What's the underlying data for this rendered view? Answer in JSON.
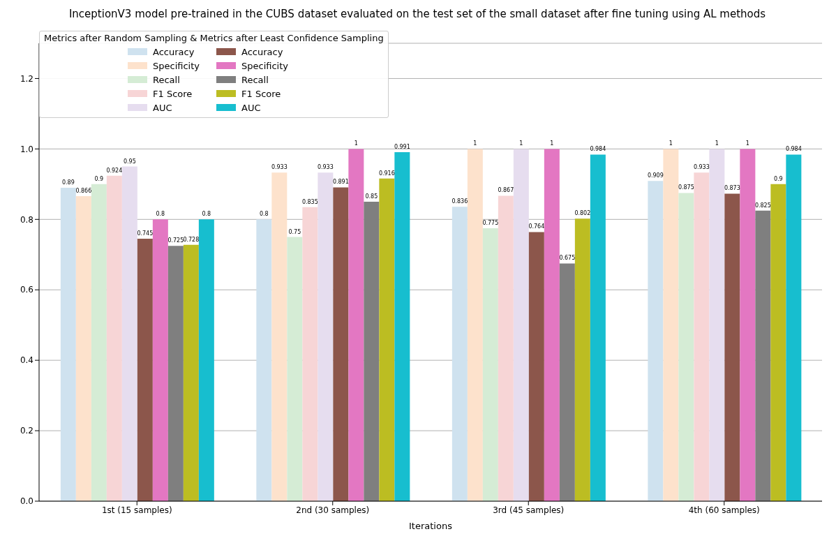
{
  "chart_data": {
    "type": "bar",
    "title": "InceptionV3 model pre-trained in the CUBS dataset evaluated on the test set of the small dataset after fine tuning using AL methods",
    "xlabel": "Iterations",
    "categories": [
      "1st (15 samples)",
      "2nd (30 samples)",
      "3rd (45 samples)",
      "4th (60 samples)"
    ],
    "legend_title": "Metrics after Random Sampling & Metrics after Least Confidence Sampling",
    "series": [
      {
        "name": "Accuracy",
        "color": "#cfe2ef",
        "values": [
          0.89,
          0.8,
          0.836,
          0.909
        ]
      },
      {
        "name": "Specificity",
        "color": "#fde2cc",
        "values": [
          0.866,
          0.933,
          1,
          1
        ]
      },
      {
        "name": "Recall",
        "color": "#d5ecd5",
        "values": [
          0.9,
          0.75,
          0.775,
          0.875
        ]
      },
      {
        "name": "F1 Score",
        "color": "#f7d5d6",
        "values": [
          0.924,
          0.835,
          0.867,
          0.933
        ]
      },
      {
        "name": "AUC",
        "color": "#e6ddef",
        "values": [
          0.95,
          0.933,
          1,
          1
        ]
      },
      {
        "name": "Accuracy",
        "color": "#8c564b",
        "values": [
          0.745,
          0.891,
          0.764,
          0.873
        ]
      },
      {
        "name": "Specificity",
        "color": "#e377c2",
        "values": [
          0.8,
          1,
          1,
          1
        ]
      },
      {
        "name": "Recall",
        "color": "#7f7f7f",
        "values": [
          0.725,
          0.85,
          0.675,
          0.825
        ]
      },
      {
        "name": "F1 Score",
        "color": "#bcbd22",
        "values": [
          0.728,
          0.916,
          0.802,
          0.9
        ]
      },
      {
        "name": "AUC",
        "color": "#17becf",
        "values": [
          0.8,
          0.991,
          0.984,
          0.984
        ]
      }
    ],
    "ylim": [
      0,
      1.3
    ],
    "yticks": [
      {
        "value": 0,
        "label": "0.0"
      },
      0.2,
      0.4,
      0.6,
      0.8,
      {
        "value": 1,
        "label": "1.0"
      },
      1.2
    ],
    "grid": "y",
    "legend": "top left",
    "data_labels": true
  }
}
